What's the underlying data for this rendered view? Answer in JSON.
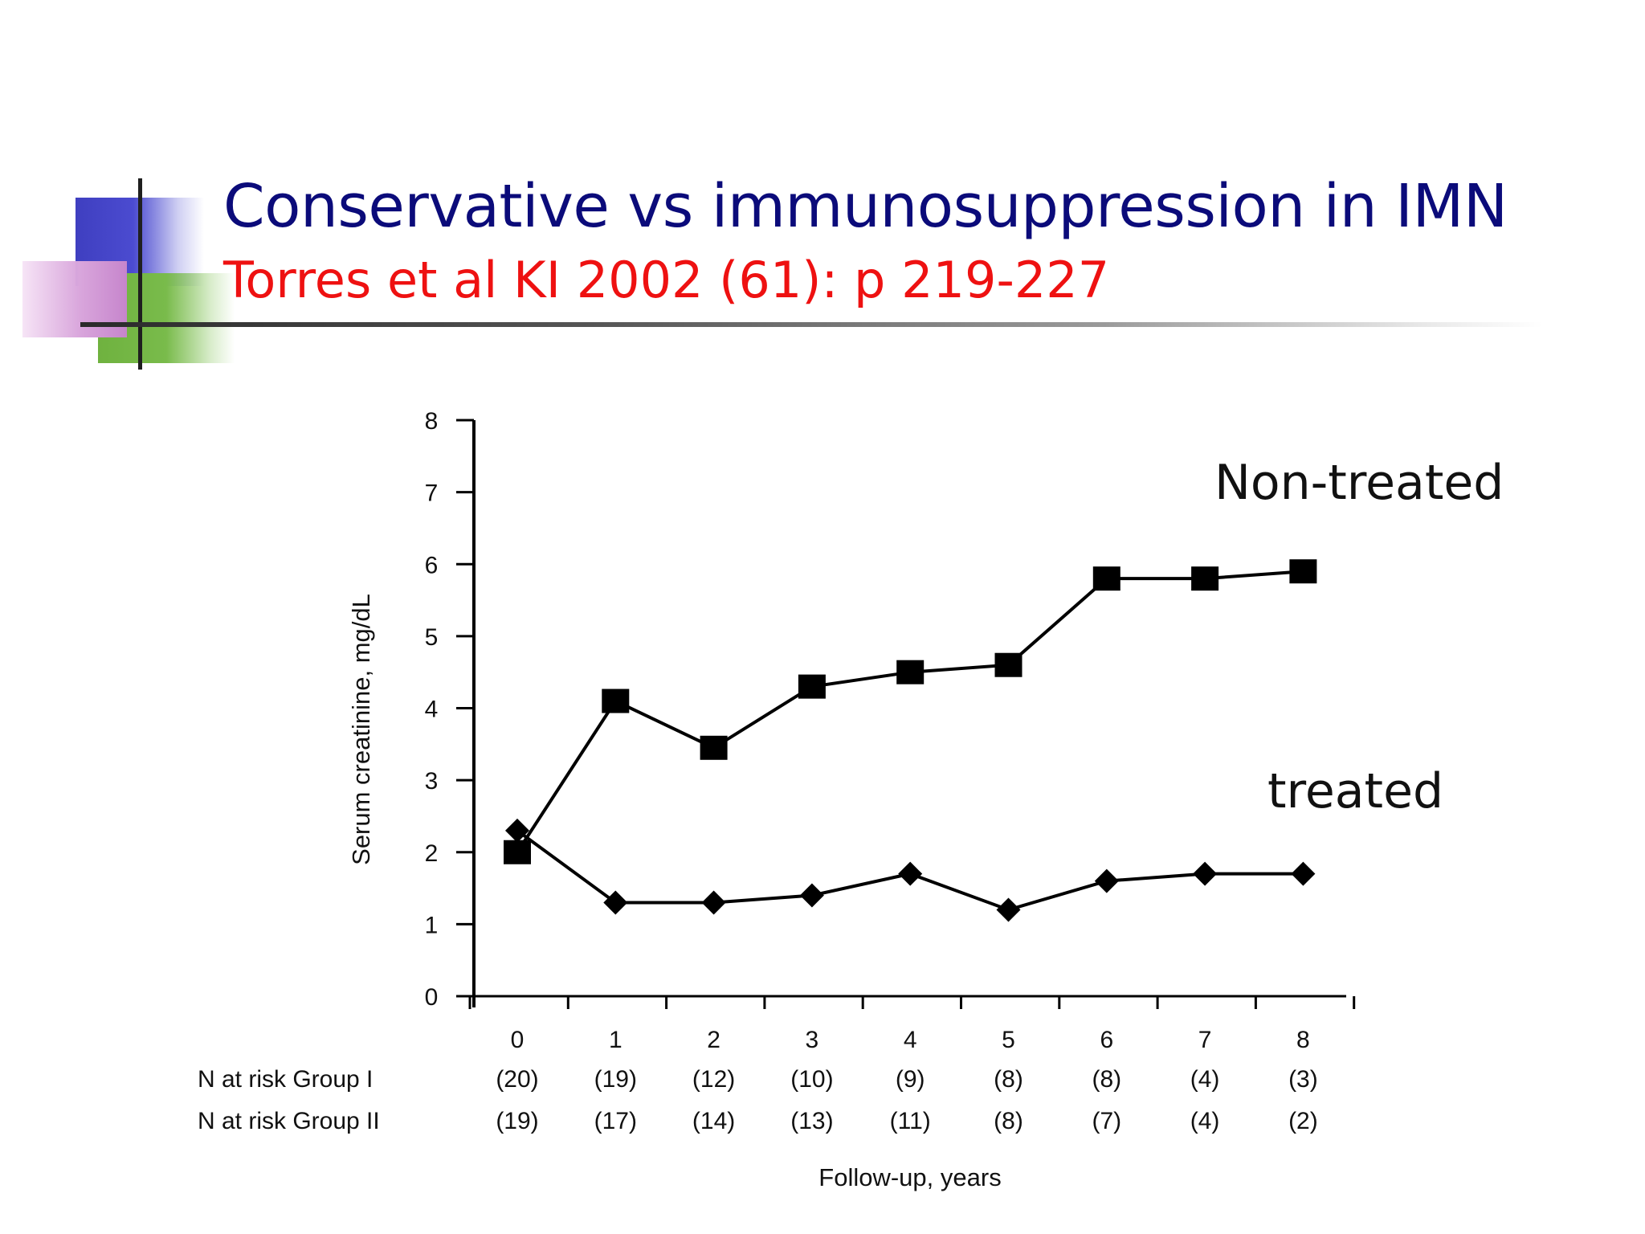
{
  "slide": {
    "title": "Conservative vs immunosuppression in IMN",
    "subtitle": "Torres et al KI 2002 (61): p 219-227",
    "colors": {
      "title": "#0b0b7a",
      "subtitle": "#ee1111"
    }
  },
  "chart_data": {
    "type": "line",
    "x": [
      0,
      1,
      2,
      3,
      4,
      5,
      6,
      7,
      8
    ],
    "xlim": [
      0,
      9
    ],
    "ylim": [
      0,
      8
    ],
    "yticks": [
      0,
      1,
      2,
      3,
      4,
      5,
      6,
      7,
      8
    ],
    "xticks": [
      0,
      1,
      2,
      3,
      4,
      5,
      6,
      7,
      8
    ],
    "xlabel": "Follow-up, years",
    "ylabel": "Serum creatinine, mg/dL",
    "grid": false,
    "series": [
      {
        "name": "Non-treated",
        "marker": "square",
        "values": [
          2.0,
          4.1,
          3.45,
          4.3,
          4.5,
          4.6,
          5.8,
          5.8,
          5.9
        ]
      },
      {
        "name": "treated",
        "marker": "diamond",
        "values": [
          2.3,
          1.3,
          1.3,
          1.4,
          1.7,
          1.2,
          1.6,
          1.7,
          1.7
        ]
      }
    ],
    "risk_table": [
      {
        "label": "N at risk Group I",
        "values": [
          "(20)",
          "(19)",
          "(12)",
          "(10)",
          "(9)",
          "(8)",
          "(8)",
          "(4)",
          "(3)"
        ]
      },
      {
        "label": "N at risk Group II",
        "values": [
          "(19)",
          "(17)",
          "(14)",
          "(13)",
          "(11)",
          "(8)",
          "(7)",
          "(4)",
          "(2)"
        ]
      }
    ]
  }
}
